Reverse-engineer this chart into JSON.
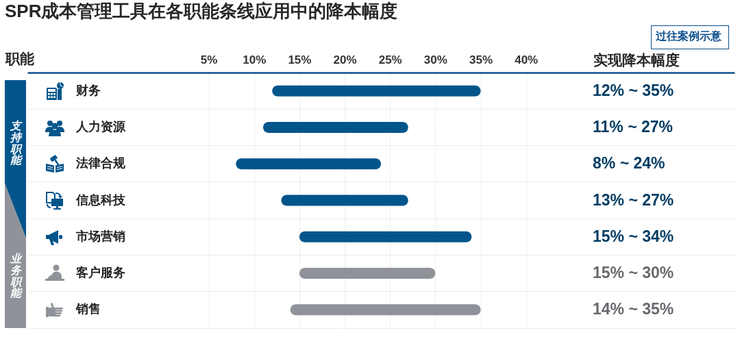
{
  "chart_data": {
    "type": "bar",
    "orientation": "horizontal",
    "title": "SPR成本管理工具在各职能条线应用中的降本幅度",
    "ylabel": "职能",
    "categories": [
      "财务",
      "人力资源",
      "法律合规",
      "信息科技",
      "市场营销",
      "客户服务",
      "销售"
    ],
    "base": [
      12,
      11,
      8,
      13,
      15,
      15,
      14
    ],
    "values": [
      23,
      16,
      16,
      14,
      19,
      15,
      21
    ],
    "colors": [
      "#02558b",
      "#02558b",
      "#02558b",
      "#02558b",
      "#02558b",
      "#8f9399",
      "#8f9399"
    ],
    "xlim": [
      -15,
      63
    ],
    "xticks": [
      {
        "value": 5,
        "label": "5%"
      },
      {
        "value": 10,
        "label": "10%"
      },
      {
        "value": 15,
        "label": "15%"
      },
      {
        "value": 20,
        "label": "20%"
      },
      {
        "value": 25,
        "label": "25%"
      },
      {
        "value": 30,
        "label": "30%"
      },
      {
        "value": 35,
        "label": "35%"
      },
      {
        "value": 40,
        "label": "40%"
      }
    ],
    "grid": true,
    "annotations": [
      "过往案例示意",
      "实现降本幅度",
      "支持职能",
      "业务职能",
      "12% ~ 35%",
      "11% ~ 27%",
      "8% ~ 24%",
      "13% ~ 27%",
      "15% ~ 34%",
      "15% ~ 30%",
      "14% ~ 35%"
    ]
  }
}
